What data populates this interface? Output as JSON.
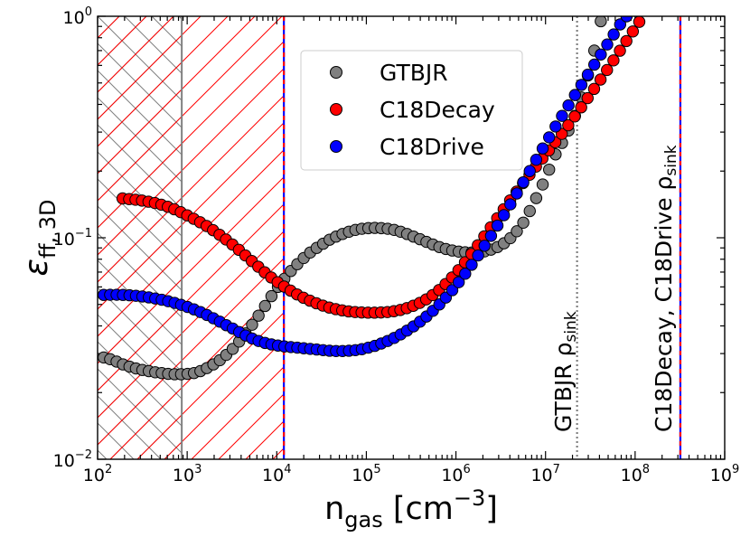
{
  "chart_data": {
    "type": "scatter",
    "xscale": "log",
    "yscale": "log",
    "xlim": [
      100,
      1000000000
    ],
    "ylim": [
      0.01,
      1
    ],
    "xlabel": {
      "main": "n",
      "sub": "gas",
      "rest": " [cm",
      "sup": "−3",
      "close": "]"
    },
    "ylabel": {
      "main": "ε",
      "sub": "ff, 3D"
    },
    "x_ticks": [
      {
        "base": "10",
        "exp": "2",
        "value": 100
      },
      {
        "base": "10",
        "exp": "3",
        "value": 1000
      },
      {
        "base": "10",
        "exp": "4",
        "value": 10000
      },
      {
        "base": "10",
        "exp": "5",
        "value": 100000
      },
      {
        "base": "10",
        "exp": "6",
        "value": 1000000
      },
      {
        "base": "10",
        "exp": "7",
        "value": 10000000
      },
      {
        "base": "10",
        "exp": "8",
        "value": 100000000
      },
      {
        "base": "10",
        "exp": "9",
        "value": 1000000000
      }
    ],
    "y_ticks": [
      {
        "base": "10",
        "exp": "−2",
        "value": 0.01
      },
      {
        "base": "10",
        "exp": "−1",
        "value": 0.1
      },
      {
        "base": "10",
        "exp": "0",
        "value": 1
      }
    ],
    "legend": {
      "position": "upper-center"
    },
    "series": [
      {
        "name": "GTBJR",
        "color": "#808080",
        "points": [
          [
            117,
            0.0288
          ],
          [
            138,
            0.0283
          ],
          [
            163,
            0.0276
          ],
          [
            192,
            0.0268
          ],
          [
            227,
            0.0262
          ],
          [
            268,
            0.0257
          ],
          [
            316,
            0.0253
          ],
          [
            373,
            0.025
          ],
          [
            440,
            0.0247
          ],
          [
            520,
            0.0245
          ],
          [
            613,
            0.0243
          ],
          [
            724,
            0.0242
          ],
          [
            855,
            0.0242
          ],
          [
            1009,
            0.0243
          ],
          [
            1191,
            0.0245
          ],
          [
            1406,
            0.025
          ],
          [
            1660,
            0.0258
          ],
          [
            1960,
            0.0268
          ],
          [
            2314,
            0.028
          ],
          [
            2732,
            0.0296
          ],
          [
            3225,
            0.0315
          ],
          [
            3807,
            0.034
          ],
          [
            4494,
            0.037
          ],
          [
            5305,
            0.0405
          ],
          [
            6263,
            0.0445
          ],
          [
            7394,
            0.0492
          ],
          [
            8728,
            0.0545
          ],
          [
            10304,
            0.06
          ],
          [
            12164,
            0.0653
          ],
          [
            14360,
            0.0708
          ],
          [
            16952,
            0.076
          ],
          [
            20013,
            0.081
          ],
          [
            23625,
            0.0858
          ],
          [
            27890,
            0.09
          ],
          [
            32925,
            0.094
          ],
          [
            38869,
            0.098
          ],
          [
            45886,
            0.1012
          ],
          [
            54170,
            0.104
          ],
          [
            63949,
            0.1065
          ],
          [
            75493,
            0.1085
          ],
          [
            89122,
            0.1098
          ],
          [
            105211,
            0.1105
          ],
          [
            124205,
            0.1108
          ],
          [
            146627,
            0.1105
          ],
          [
            173097,
            0.1098
          ],
          [
            204345,
            0.1085
          ],
          [
            241234,
            0.1065
          ],
          [
            284783,
            0.104
          ],
          [
            336194,
            0.1012
          ],
          [
            396886,
            0.0985
          ],
          [
            468535,
            0.0958
          ],
          [
            553118,
            0.0932
          ],
          [
            652970,
            0.0908
          ],
          [
            770849,
            0.089
          ],
          [
            910008,
            0.0876
          ],
          [
            1074289,
            0.0866
          ],
          [
            1268227,
            0.086
          ],
          [
            1497174,
            0.0858
          ],
          [
            1767450,
            0.086
          ],
          [
            2086519,
            0.0868
          ],
          [
            2463186,
            0.0884
          ],
          [
            2907852,
            0.0908
          ],
          [
            3432805,
            0.0944
          ],
          [
            4052526,
            0.0996
          ],
          [
            4784121,
            0.107
          ],
          [
            5647789,
            0.117
          ],
          [
            6667373,
            0.132
          ],
          [
            7871018,
            0.151
          ],
          [
            9291952,
            0.174
          ],
          [
            10969400,
            0.203
          ],
          [
            12949667,
            0.238
          ],
          [
            15287433,
            0.268
          ],
          [
            18047235,
            0.305
          ],
          [
            21305261,
            0.355
          ],
          [
            25151453,
            0.43
          ],
          [
            29691963,
            0.54
          ],
          [
            35052162,
            0.7
          ],
          [
            41380000,
            0.95
          ]
        ]
      },
      {
        "name": "C18Decay",
        "color": "#ff0000",
        "points": [
          [
            190,
            0.1505
          ],
          [
            225,
            0.1495
          ],
          [
            265,
            0.1485
          ],
          [
            313,
            0.1472
          ],
          [
            370,
            0.1455
          ],
          [
            436,
            0.1435
          ],
          [
            515,
            0.141
          ],
          [
            608,
            0.138
          ],
          [
            718,
            0.1345
          ],
          [
            848,
            0.1305
          ],
          [
            1001,
            0.1262
          ],
          [
            1182,
            0.1218
          ],
          [
            1395,
            0.1175
          ],
          [
            1647,
            0.113
          ],
          [
            1945,
            0.1082
          ],
          [
            2296,
            0.1032
          ],
          [
            2710,
            0.0982
          ],
          [
            3200,
            0.0932
          ],
          [
            3778,
            0.0882
          ],
          [
            4460,
            0.0832
          ],
          [
            5265,
            0.0785
          ],
          [
            6216,
            0.074
          ],
          [
            7338,
            0.0698
          ],
          [
            8663,
            0.0662
          ],
          [
            10227,
            0.063
          ],
          [
            12074,
            0.0602
          ],
          [
            14254,
            0.0577
          ],
          [
            16828,
            0.0555
          ],
          [
            19866,
            0.0536
          ],
          [
            23453,
            0.052
          ],
          [
            27688,
            0.0506
          ],
          [
            32687,
            0.0494
          ],
          [
            38589,
            0.0484
          ],
          [
            45557,
            0.0476
          ],
          [
            53782,
            0.047
          ],
          [
            63493,
            0.0465
          ],
          [
            74957,
            0.0462
          ],
          [
            88491,
            0.046
          ],
          [
            104469,
            0.0459
          ],
          [
            123331,
            0.0459
          ],
          [
            145599,
            0.046
          ],
          [
            171888,
            0.0462
          ],
          [
            202923,
            0.0466
          ],
          [
            239562,
            0.0472
          ],
          [
            282816,
            0.0481
          ],
          [
            333880,
            0.0493
          ],
          [
            394164,
            0.0508
          ],
          [
            465332,
            0.0527
          ],
          [
            549350,
            0.0551
          ],
          [
            648538,
            0.0581
          ],
          [
            765634,
            0.0618
          ],
          [
            903872,
            0.0662
          ],
          [
            1067070,
            0.0714
          ],
          [
            1259733,
            0.0775
          ],
          [
            1487183,
            0.0845
          ],
          [
            1755701,
            0.0925
          ],
          [
            2072702,
            0.1015
          ],
          [
            2446940,
            0.1115
          ],
          [
            2888751,
            0.1225
          ],
          [
            3410333,
            0.1345
          ],
          [
            4026089,
            0.1475
          ],
          [
            4753023,
            0.1615
          ],
          [
            5611213,
            0.1765
          ],
          [
            6624360,
            0.1925
          ],
          [
            7820438,
            0.2095
          ],
          [
            9232473,
            0.228
          ],
          [
            10899460,
            0.248
          ],
          [
            12867428,
            0.27
          ],
          [
            15190739,
            0.2945
          ],
          [
            17933551,
            0.322
          ],
          [
            21171595,
            0.353
          ],
          [
            24994298,
            0.388
          ],
          [
            29507177,
            0.427
          ],
          [
            34834907,
            0.47
          ],
          [
            41124600,
            0.518
          ],
          [
            48550000,
            0.572
          ],
          [
            57316000,
            0.632
          ],
          [
            67665000,
            0.699
          ],
          [
            79882000,
            0.773
          ],
          [
            94306000,
            0.854
          ],
          [
            111330000,
            0.944
          ]
        ]
      },
      {
        "name": "C18Drive",
        "color": "#0000ff",
        "points": [
          [
            117,
            0.0552
          ],
          [
            138,
            0.0553
          ],
          [
            163,
            0.0553
          ],
          [
            192,
            0.0552
          ],
          [
            227,
            0.055
          ],
          [
            268,
            0.0547
          ],
          [
            316,
            0.0543
          ],
          [
            373,
            0.0538
          ],
          [
            440,
            0.0532
          ],
          [
            520,
            0.0525
          ],
          [
            613,
            0.0517
          ],
          [
            724,
            0.0508
          ],
          [
            855,
            0.0498
          ],
          [
            1009,
            0.0487
          ],
          [
            1191,
            0.0475
          ],
          [
            1406,
            0.0462
          ],
          [
            1660,
            0.0448
          ],
          [
            1960,
            0.0433
          ],
          [
            2314,
            0.0418
          ],
          [
            2732,
            0.0403
          ],
          [
            3225,
            0.0389
          ],
          [
            3807,
            0.0375
          ],
          [
            4494,
            0.0362
          ],
          [
            5305,
            0.0351
          ],
          [
            6263,
            0.0342
          ],
          [
            7394,
            0.0335
          ],
          [
            8728,
            0.033
          ],
          [
            10304,
            0.0326
          ],
          [
            12164,
            0.0323
          ],
          [
            14360,
            0.0321
          ],
          [
            16952,
            0.0319
          ],
          [
            20013,
            0.0317
          ],
          [
            23625,
            0.0315
          ],
          [
            27890,
            0.0313
          ],
          [
            32925,
            0.0311
          ],
          [
            38869,
            0.0309
          ],
          [
            45886,
            0.0308
          ],
          [
            54170,
            0.0308
          ],
          [
            63949,
            0.0309
          ],
          [
            75493,
            0.0311
          ],
          [
            89122,
            0.0314
          ],
          [
            105211,
            0.0319
          ],
          [
            124205,
            0.0325
          ],
          [
            146627,
            0.0333
          ],
          [
            173097,
            0.0342
          ],
          [
            204345,
            0.0353
          ],
          [
            241234,
            0.0366
          ],
          [
            284783,
            0.0381
          ],
          [
            336194,
            0.0398
          ],
          [
            396886,
            0.0418
          ],
          [
            468535,
            0.0441
          ],
          [
            553118,
            0.0468
          ],
          [
            652970,
            0.05
          ],
          [
            770849,
            0.0537
          ],
          [
            910008,
            0.058
          ],
          [
            1074289,
            0.063
          ],
          [
            1268227,
            0.0688
          ],
          [
            1497174,
            0.0755
          ],
          [
            1767450,
            0.0832
          ],
          [
            2086519,
            0.092
          ],
          [
            2463186,
            0.102
          ],
          [
            2907852,
            0.1135
          ],
          [
            3432805,
            0.1265
          ],
          [
            4052526,
            0.1415
          ],
          [
            4784121,
            0.1585
          ],
          [
            5647789,
            0.178
          ],
          [
            6667373,
            0.2
          ],
          [
            7871018,
            0.225
          ],
          [
            9291952,
            0.253
          ],
          [
            10969400,
            0.284
          ],
          [
            12949667,
            0.318
          ],
          [
            15287433,
            0.355
          ],
          [
            18047235,
            0.396
          ],
          [
            21305261,
            0.441
          ],
          [
            25151453,
            0.49
          ],
          [
            29691963,
            0.545
          ],
          [
            35052162,
            0.605
          ],
          [
            41380000,
            0.672
          ],
          [
            48849000,
            0.746
          ],
          [
            57669000,
            0.828
          ],
          [
            68081000,
            0.919
          ],
          [
            80374000,
            1.0
          ]
        ]
      }
    ],
    "hatched_regions": [
      {
        "x_from": 100,
        "x_to": 870,
        "style": "cross",
        "color": "#808080"
      },
      {
        "x_from": 100,
        "x_to": 12000,
        "style": "diagonal",
        "color": "#ff0000"
      }
    ],
    "vertical_lines": [
      {
        "x": 870,
        "color": "#808080",
        "style": "solid"
      },
      {
        "x": 12000,
        "color": "#0000ff",
        "color2": "#ff0000",
        "style": "dashed-bicolor"
      },
      {
        "x": 22500000,
        "color": "#808080",
        "style": "dotted"
      },
      {
        "x": 320000000,
        "color": "#0000ff",
        "color2": "#ff0000",
        "style": "dashed-bicolor"
      }
    ],
    "annotations": [
      {
        "x": 22500000,
        "main": "GTBJR ρ",
        "sub": "sink"
      },
      {
        "x": 320000000,
        "main": "C18Decay, C18Drive ρ",
        "sub": "sink"
      }
    ]
  }
}
